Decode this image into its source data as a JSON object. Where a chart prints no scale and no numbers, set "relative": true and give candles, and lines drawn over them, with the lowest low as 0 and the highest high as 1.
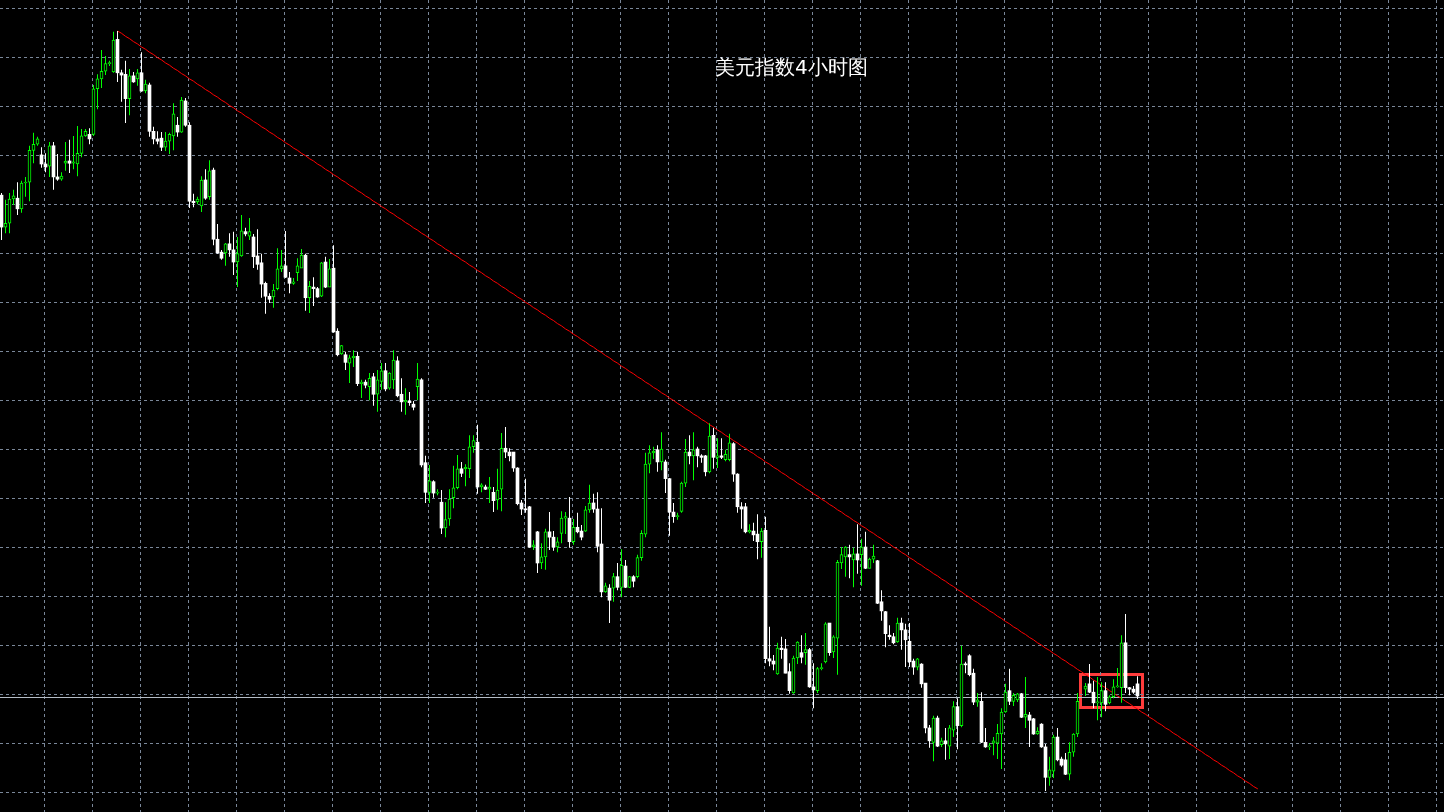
{
  "chart_data": {
    "type": "candlestick",
    "title": "美元指数4小时图",
    "relative": true,
    "grid": true,
    "categories": [
      null,
      null,
      null,
      null,
      null,
      null,
      null,
      null,
      null,
      null,
      null,
      null,
      null,
      null,
      null,
      null,
      null,
      null,
      null,
      null,
      null,
      null,
      null,
      null,
      null,
      null,
      null,
      null,
      null,
      null,
      null,
      null,
      null,
      null,
      null,
      null,
      null,
      null,
      null,
      null,
      null,
      null,
      null,
      null,
      null,
      null,
      null,
      null,
      null,
      null,
      null,
      null,
      null,
      null,
      null,
      null,
      null,
      null,
      null,
      null,
      null,
      null,
      null,
      null,
      null,
      null,
      null,
      null,
      null,
      null,
      null,
      null,
      null,
      null,
      null,
      null,
      null,
      null,
      null,
      null,
      null,
      null,
      null,
      null,
      null,
      null,
      null,
      null,
      null,
      null,
      null,
      null,
      null,
      null,
      null,
      null,
      null,
      null,
      null,
      null,
      null,
      null,
      null,
      null,
      null,
      null,
      null,
      null,
      null,
      null,
      null,
      null,
      null,
      null,
      null,
      null,
      null,
      null,
      null,
      null,
      null,
      null,
      null,
      null,
      null,
      null,
      null,
      null,
      null,
      null,
      null,
      null,
      null,
      null,
      null,
      null,
      null,
      null,
      null,
      null,
      null,
      null,
      null,
      null,
      null,
      null,
      null,
      null,
      null,
      null,
      null,
      null,
      null,
      null,
      null,
      null,
      null,
      null,
      null,
      null,
      null,
      null,
      null,
      null,
      null,
      null,
      null,
      null,
      null,
      null,
      null,
      null,
      null,
      null,
      null,
      null,
      null,
      null,
      null,
      null,
      null,
      null,
      null,
      null,
      null,
      null,
      null,
      null,
      null,
      null,
      null,
      null,
      null,
      null,
      null,
      null,
      null,
      null,
      null,
      null,
      null,
      null,
      null,
      null,
      null,
      null,
      null,
      null,
      null,
      null,
      null,
      null,
      null,
      null,
      null,
      null,
      null,
      null,
      null,
      null,
      null,
      null,
      null,
      null,
      null,
      null,
      null,
      null,
      null,
      null,
      null,
      null,
      null,
      null,
      null,
      null,
      null,
      null,
      null,
      null,
      null,
      null,
      null,
      null,
      null,
      null,
      null,
      null,
      null,
      null,
      null,
      null,
      null,
      null,
      null,
      null,
      null,
      null,
      null,
      null,
      null,
      null,
      null,
      null,
      null,
      null,
      null,
      null,
      null,
      null,
      null,
      null,
      null,
      null,
      null,
      null,
      null,
      null,
      null,
      null,
      null,
      null,
      null,
      null,
      null,
      null,
      null,
      null,
      null,
      null,
      null,
      null,
      null,
      null,
      null,
      null,
      null,
      null,
      null,
      null,
      null,
      null,
      null,
      null,
      null,
      null,
      null,
      null,
      null,
      null,
      null,
      null,
      null,
      null,
      null
    ],
    "ohlc": [
      [
        0.784,
        0.787,
        0.725,
        0.742
      ],
      [
        0.742,
        0.778,
        0.734,
        0.747
      ],
      [
        0.747,
        0.787,
        0.734,
        0.779
      ],
      [
        0.779,
        0.791,
        0.771,
        0.783
      ],
      [
        0.78,
        0.801,
        0.758,
        0.766
      ],
      [
        0.766,
        0.803,
        0.761,
        0.8
      ],
      [
        0.8,
        0.808,
        0.782,
        0.801
      ],
      [
        0.801,
        0.849,
        0.776,
        0.843
      ],
      [
        0.843,
        0.866,
        0.826,
        0.851
      ],
      [
        0.851,
        0.861,
        0.849,
        0.858
      ],
      [
        0.837,
        0.847,
        0.82,
        0.825
      ],
      [
        0.825,
        0.839,
        0.814,
        0.821
      ],
      [
        0.822,
        0.854,
        0.808,
        0.849
      ],
      [
        0.849,
        0.854,
        0.791,
        0.808
      ],
      [
        0.808,
        0.838,
        0.803,
        0.805
      ],
      [
        0.805,
        0.814,
        0.803,
        0.809
      ],
      [
        0.826,
        0.854,
        0.816,
        0.829
      ],
      [
        0.829,
        0.857,
        0.813,
        0.826
      ],
      [
        0.826,
        0.862,
        0.818,
        0.828
      ],
      [
        0.825,
        0.875,
        0.809,
        0.839
      ],
      [
        0.839,
        0.871,
        0.834,
        0.862
      ],
      [
        0.862,
        0.871,
        0.861,
        0.868
      ],
      [
        0.864,
        0.872,
        0.851,
        0.858
      ],
      [
        0.864,
        0.929,
        0.862,
        0.924
      ],
      [
        0.924,
        0.943,
        0.897,
        0.937
      ],
      [
        0.937,
        0.975,
        0.925,
        0.947
      ],
      [
        0.947,
        0.967,
        0.942,
        0.957
      ],
      [
        0.957,
        0.961,
        0.954,
        0.958
      ],
      [
        0.946,
        0.999,
        0.945,
        0.988
      ],
      [
        0.989,
        1,
        0.933,
        0.945
      ],
      [
        0.945,
        0.949,
        0.907,
        0.942
      ],
      [
        0.943,
        0.961,
        0.879,
        0.911
      ],
      [
        0.911,
        0.95,
        0.889,
        0.941
      ],
      [
        0.941,
        0.946,
        0.932,
        0.933
      ],
      [
        0.937,
        0.95,
        0.928,
        0.945
      ],
      [
        0.945,
        0.972,
        0.92,
        0.921
      ],
      [
        0.921,
        0.936,
        0.918,
        0.93
      ],
      [
        0.929,
        0.932,
        0.861,
        0.868
      ],
      [
        0.868,
        0.874,
        0.851,
        0.858
      ],
      [
        0.858,
        0.868,
        0.851,
        0.855
      ],
      [
        0.859,
        0.867,
        0.842,
        0.847
      ],
      [
        0.847,
        0.867,
        0.842,
        0.855
      ],
      [
        0.855,
        0.866,
        0.838,
        0.864
      ],
      [
        0.862,
        0.905,
        0.843,
        0.891
      ],
      [
        0.876,
        0.887,
        0.861,
        0.867
      ],
      [
        0.867,
        0.913,
        0.866,
        0.909
      ],
      [
        0.908,
        0.912,
        0.874,
        0.876
      ],
      [
        0.876,
        0.88,
        0.767,
        0.776
      ],
      [
        0.776,
        0.786,
        0.768,
        0.774
      ],
      [
        0.775,
        0.782,
        0.772,
        0.779
      ],
      [
        0.77,
        0.809,
        0.762,
        0.804
      ],
      [
        0.804,
        0.818,
        0.778,
        0.78
      ],
      [
        0.782,
        0.83,
        0.778,
        0.816
      ],
      [
        0.817,
        0.82,
        0.718,
        0.726
      ],
      [
        0.726,
        0.746,
        0.707,
        0.708
      ],
      [
        0.709,
        0.712,
        0.699,
        0.701
      ],
      [
        0.708,
        0.721,
        0.691,
        0.72
      ],
      [
        0.72,
        0.734,
        0.703,
        0.712
      ],
      [
        0.712,
        0.736,
        0.679,
        0.696
      ],
      [
        0.696,
        0.729,
        0.663,
        0.707
      ],
      [
        0.704,
        0.758,
        0.703,
        0.737
      ],
      [
        0.736,
        0.741,
        0.73,
        0.733
      ],
      [
        0.73,
        0.754,
        0.725,
        0.736
      ],
      [
        0.729,
        0.733,
        0.688,
        0.703
      ],
      [
        0.704,
        0.739,
        0.686,
        0.693
      ],
      [
        0.695,
        0.707,
        0.649,
        0.667
      ],
      [
        0.668,
        0.67,
        0.628,
        0.651
      ],
      [
        0.651,
        0.655,
        0.642,
        0.647
      ],
      [
        0.65,
        0.667,
        0.636,
        0.659
      ],
      [
        0.661,
        0.714,
        0.659,
        0.687
      ],
      [
        0.687,
        0.712,
        0.683,
        0.691
      ],
      [
        0.691,
        0.737,
        0.675,
        0.676
      ],
      [
        0.675,
        0.683,
        0.655,
        0.668
      ],
      [
        0.668,
        0.675,
        0.666,
        0.67
      ],
      [
        0.682,
        0.701,
        0.671,
        0.691
      ],
      [
        0.688,
        0.713,
        0.688,
        0.705
      ],
      [
        0.705,
        0.707,
        0.632,
        0.649
      ],
      [
        0.649,
        0.671,
        0.629,
        0.664
      ],
      [
        0.663,
        0.676,
        0.638,
        0.661
      ],
      [
        0.661,
        0.663,
        0.649,
        0.65
      ],
      [
        0.651,
        0.696,
        0.65,
        0.695
      ],
      [
        0.696,
        0.703,
        0.662,
        0.663
      ],
      [
        0.663,
        0.7,
        0.663,
        0.687
      ],
      [
        0.688,
        0.718,
        0.603,
        0.604
      ],
      [
        0.605,
        0.609,
        0.572,
        0.574
      ],
      [
        0.575,
        0.587,
        0.574,
        0.586
      ],
      [
        0.574,
        0.578,
        0.554,
        0.564
      ],
      [
        0.563,
        0.574,
        0.537,
        0.57
      ],
      [
        0.57,
        0.58,
        0.558,
        0.572
      ],
      [
        0.572,
        0.578,
        0.533,
        0.536
      ],
      [
        0.536,
        0.541,
        0.517,
        0.538
      ],
      [
        0.538,
        0.541,
        0.53,
        0.534
      ],
      [
        0.532,
        0.55,
        0.514,
        0.543
      ],
      [
        0.545,
        0.55,
        0.507,
        0.522
      ],
      [
        0.522,
        0.554,
        0.499,
        0.541
      ],
      [
        0.539,
        0.563,
        0.528,
        0.553
      ],
      [
        0.553,
        0.563,
        0.526,
        0.529
      ],
      [
        0.53,
        0.551,
        0.528,
        0.55
      ],
      [
        0.541,
        0.58,
        0.529,
        0.567
      ],
      [
        0.566,
        0.572,
        0.518,
        0.52
      ],
      [
        0.522,
        0.543,
        0.499,
        0.512
      ],
      [
        0.512,
        0.53,
        0.495,
        0.514
      ],
      [
        0.513,
        0.525,
        0.507,
        0.511
      ],
      [
        0.509,
        0.513,
        0.501,
        0.505
      ],
      [
        0.532,
        0.563,
        0.514,
        0.542
      ],
      [
        0.541,
        0.543,
        0.426,
        0.429
      ],
      [
        0.432,
        0.441,
        0.379,
        0.393
      ],
      [
        0.393,
        0.429,
        0.379,
        0.408
      ],
      [
        0.407,
        0.409,
        0.386,
        0.392
      ],
      [
        0.392,
        0.397,
        0.389,
        0.393
      ],
      [
        0.38,
        0.396,
        0.338,
        0.346
      ],
      [
        0.346,
        0.38,
        0.334,
        0.357
      ],
      [
        0.358,
        0.397,
        0.349,
        0.384
      ],
      [
        0.386,
        0.428,
        0.372,
        0.399
      ],
      [
        0.399,
        0.442,
        0.397,
        0.424
      ],
      [
        0.424,
        0.433,
        0.413,
        0.418
      ],
      [
        0.424,
        0.43,
        0.401,
        0.426
      ],
      [
        0.424,
        0.468,
        0.412,
        0.453
      ],
      [
        0.453,
        0.468,
        0.445,
        0.461
      ],
      [
        0.459,
        0.482,
        0.391,
        0.4
      ],
      [
        0.4,
        0.405,
        0.393,
        0.403
      ],
      [
        0.4,
        0.403,
        0.396,
        0.397
      ],
      [
        0.397,
        0.413,
        0.379,
        0.4
      ],
      [
        0.393,
        0.4,
        0.367,
        0.382
      ],
      [
        0.383,
        0.424,
        0.37,
        0.396
      ],
      [
        0.397,
        0.471,
        0.368,
        0.451
      ],
      [
        0.451,
        0.479,
        0.438,
        0.446
      ],
      [
        0.446,
        0.451,
        0.434,
        0.441
      ],
      [
        0.446,
        0.446,
        0.42,
        0.425
      ],
      [
        0.425,
        0.426,
        0.376,
        0.378
      ],
      [
        0.379,
        0.383,
        0.363,
        0.371
      ],
      [
        0.371,
        0.411,
        0.366,
        0.37
      ],
      [
        0.374,
        0.375,
        0.32,
        0.321
      ],
      [
        0.321,
        0.33,
        0.317,
        0.324
      ],
      [
        0.341,
        0.342,
        0.287,
        0.3
      ],
      [
        0.3,
        0.326,
        0.292,
        0.308
      ],
      [
        0.308,
        0.345,
        0.291,
        0.341
      ],
      [
        0.341,
        0.367,
        0.317,
        0.334
      ],
      [
        0.334,
        0.342,
        0.316,
        0.321
      ],
      [
        0.321,
        0.334,
        0.314,
        0.328
      ],
      [
        0.339,
        0.368,
        0.326,
        0.359
      ],
      [
        0.359,
        0.367,
        0.338,
        0.361
      ],
      [
        0.359,
        0.387,
        0.32,
        0.328
      ],
      [
        0.328,
        0.358,
        0.324,
        0.347
      ],
      [
        0.347,
        0.366,
        0.339,
        0.341
      ],
      [
        0.342,
        0.35,
        0.33,
        0.334
      ],
      [
        0.342,
        0.375,
        0.341,
        0.37
      ],
      [
        0.37,
        0.403,
        0.366,
        0.379
      ],
      [
        0.379,
        0.391,
        0.366,
        0.371
      ],
      [
        0.371,
        0.393,
        0.314,
        0.322
      ],
      [
        0.325,
        0.372,
        0.255,
        0.262
      ],
      [
        0.262,
        0.274,
        0.261,
        0.27
      ],
      [
        0.267,
        0.272,
        0.221,
        0.251
      ],
      [
        0.267,
        0.287,
        0.249,
        0.282
      ],
      [
        0.282,
        0.3,
        0.264,
        0.268
      ],
      [
        0.268,
        0.318,
        0.255,
        0.297
      ],
      [
        0.296,
        0.304,
        0.267,
        0.268
      ],
      [
        0.268,
        0.283,
        0.267,
        0.282
      ],
      [
        0.282,
        0.284,
        0.268,
        0.276
      ],
      [
        0.282,
        0.311,
        0.28,
        0.307
      ],
      [
        0.307,
        0.343,
        0.303,
        0.339
      ],
      [
        0.338,
        0.445,
        0.334,
        0.43
      ],
      [
        0.43,
        0.455,
        0.418,
        0.445
      ],
      [
        0.445,
        0.453,
        0.437,
        0.447
      ],
      [
        0.449,
        0.455,
        0.42,
        0.433
      ],
      [
        0.433,
        0.472,
        0.422,
        0.45
      ],
      [
        0.433,
        0.436,
        0.392,
        0.411
      ],
      [
        0.411,
        0.412,
        0.336,
        0.367
      ],
      [
        0.367,
        0.379,
        0.353,
        0.361
      ],
      [
        0.361,
        0.366,
        0.357,
        0.362
      ],
      [
        0.368,
        0.407,
        0.366,
        0.405
      ],
      [
        0.405,
        0.463,
        0.4,
        0.446
      ],
      [
        0.446,
        0.468,
        0.43,
        0.441
      ],
      [
        0.441,
        0.472,
        0.409,
        0.449
      ],
      [
        0.45,
        0.453,
        0.426,
        0.441
      ],
      [
        0.441,
        0.443,
        0.432,
        0.439
      ],
      [
        0.441,
        0.442,
        0.414,
        0.42
      ],
      [
        0.42,
        0.484,
        0.418,
        0.467
      ],
      [
        0.468,
        0.478,
        0.424,
        0.439
      ],
      [
        0.439,
        0.464,
        0.425,
        0.441
      ],
      [
        0.441,
        0.464,
        0.437,
        0.439
      ],
      [
        0.436,
        0.449,
        0.434,
        0.443
      ],
      [
        0.436,
        0.47,
        0.434,
        0.458
      ],
      [
        0.457,
        0.459,
        0.407,
        0.417
      ],
      [
        0.417,
        0.418,
        0.366,
        0.374
      ],
      [
        0.374,
        0.38,
        0.345,
        0.371
      ],
      [
        0.374,
        0.379,
        0.339,
        0.341
      ],
      [
        0.341,
        0.351,
        0.339,
        0.343
      ],
      [
        0.342,
        0.353,
        0.329,
        0.337
      ],
      [
        0.338,
        0.364,
        0.305,
        0.328
      ],
      [
        0.328,
        0.346,
        0.307,
        0.342
      ],
      [
        0.343,
        0.361,
        0.168,
        0.174
      ],
      [
        0.174,
        0.216,
        0.164,
        0.171
      ],
      [
        0.171,
        0.179,
        0.159,
        0.167
      ],
      [
        0.154,
        0.195,
        0.153,
        0.188
      ],
      [
        0.188,
        0.203,
        0.174,
        0.186
      ],
      [
        0.187,
        0.2,
        0.155,
        0.155
      ],
      [
        0.157,
        0.168,
        0.128,
        0.132
      ],
      [
        0.129,
        0.178,
        0.128,
        0.175
      ],
      [
        0.175,
        0.197,
        0.167,
        0.196
      ],
      [
        0.182,
        0.205,
        0.168,
        0.176
      ],
      [
        0.182,
        0.208,
        0.166,
        0.186
      ],
      [
        0.186,
        0.188,
        0.136,
        0.137
      ],
      [
        0.137,
        0.168,
        0.109,
        0.133
      ],
      [
        0.132,
        0.163,
        0.129,
        0.161
      ],
      [
        0.161,
        0.168,
        0.159,
        0.162
      ],
      [
        0.17,
        0.222,
        0.168,
        0.22
      ],
      [
        0.221,
        0.221,
        0.178,
        0.182
      ],
      [
        0.183,
        0.205,
        0.175,
        0.203
      ],
      [
        0.201,
        0.304,
        0.153,
        0.301
      ],
      [
        0.3,
        0.321,
        0.292,
        0.311
      ],
      [
        0.308,
        0.322,
        0.282,
        0.321
      ],
      [
        0.311,
        0.324,
        0.28,
        0.308
      ],
      [
        0.304,
        0.32,
        0.268,
        0.312
      ],
      [
        0.312,
        0.351,
        0.286,
        0.304
      ],
      [
        0.311,
        0.332,
        0.27,
        0.321
      ],
      [
        0.321,
        0.341,
        0.292,
        0.293
      ],
      [
        0.293,
        0.307,
        0.293,
        0.305
      ],
      [
        0.305,
        0.324,
        0.3,
        0.309
      ],
      [
        0.303,
        0.304,
        0.246,
        0.247
      ],
      [
        0.249,
        0.264,
        0.224,
        0.237
      ],
      [
        0.236,
        0.237,
        0.189,
        0.207
      ],
      [
        0.205,
        0.218,
        0.199,
        0.203
      ],
      [
        0.203,
        0.208,
        0.193,
        0.195
      ],
      [
        0.196,
        0.228,
        0.195,
        0.221
      ],
      [
        0.221,
        0.228,
        0.186,
        0.212
      ],
      [
        0.212,
        0.22,
        0.163,
        0.199
      ],
      [
        0.197,
        0.221,
        0.163,
        0.17
      ],
      [
        0.171,
        0.174,
        0.153,
        0.163
      ],
      [
        0.163,
        0.175,
        0.159,
        0.174
      ],
      [
        0.167,
        0.168,
        0.136,
        0.141
      ],
      [
        0.142,
        0.142,
        0.076,
        0.083
      ],
      [
        0.083,
        0.087,
        0.057,
        0.066
      ],
      [
        0.064,
        0.099,
        0.039,
        0.096
      ],
      [
        0.096,
        0.099,
        0.058,
        0.059
      ],
      [
        0.061,
        0.07,
        0.058,
        0.066
      ],
      [
        0.066,
        0.083,
        0.041,
        0.062
      ],
      [
        0.059,
        0.087,
        0.042,
        0.083
      ],
      [
        0.08,
        0.118,
        0.071,
        0.111
      ],
      [
        0.111,
        0.122,
        0.055,
        0.086
      ],
      [
        0.086,
        0.191,
        0.084,
        0.167
      ],
      [
        0.167,
        0.17,
        0.155,
        0.166
      ],
      [
        0.178,
        0.18,
        0.151,
        0.153
      ],
      [
        0.155,
        0.161,
        0.113,
        0.117
      ],
      [
        0.117,
        0.129,
        0.111,
        0.12
      ],
      [
        0.118,
        0.13,
        0.063,
        0.064
      ],
      [
        0.064,
        0.083,
        0.057,
        0.058
      ],
      [
        0.058,
        0.063,
        0.054,
        0.059
      ],
      [
        0.063,
        0.071,
        0.047,
        0.066
      ],
      [
        0.063,
        0.088,
        0.042,
        0.076
      ],
      [
        0.075,
        0.109,
        0.029,
        0.104
      ],
      [
        0.104,
        0.141,
        0.103,
        0.13
      ],
      [
        0.132,
        0.161,
        0.113,
        0.118
      ],
      [
        0.118,
        0.129,
        0.112,
        0.126
      ],
      [
        0.12,
        0.129,
        0.117,
        0.128
      ],
      [
        0.128,
        0.129,
        0.096,
        0.097
      ],
      [
        0.097,
        0.15,
        0.083,
        0.101
      ],
      [
        0.1,
        0.104,
        0.058,
        0.093
      ],
      [
        0.095,
        0.096,
        0.074,
        0.075
      ],
      [
        0.075,
        0.084,
        0.074,
        0.079
      ],
      [
        0.088,
        0.089,
        0.057,
        0.058
      ],
      [
        0.058,
        0.062,
        0,
        0.018
      ],
      [
        0.018,
        0.045,
        0.007,
        0.028
      ],
      [
        0.026,
        0.074,
        0.017,
        0.071
      ],
      [
        0.071,
        0.083,
        0.039,
        0.041
      ],
      [
        0.042,
        0.045,
        0.032,
        0.034
      ],
      [
        0.041,
        0.05,
        0.021,
        0.022
      ],
      [
        0.022,
        0.064,
        0.014,
        0.051
      ],
      [
        0.051,
        0.076,
        0.045,
        0.075
      ],
      [
        0.075,
        0.129,
        0.071,
        0.118
      ],
      null,
      [
        0.134,
        0.142,
        0.125,
        0.138
      ],
      [
        0.141,
        0.167,
        0.129,
        0.13
      ],
      [
        0.13,
        0.145,
        0.109,
        0.116
      ],
      [
        0.116,
        0.15,
        0.093,
        0.117
      ],
      [
        0.116,
        0.143,
        0.097,
        0.132
      ],
      [
        0.132,
        0.143,
        0.105,
        0.114
      ],
      [
        0.116,
        0.126,
        0.114,
        0.124
      ],
      [
        0.124,
        0.147,
        0.122,
        0.137
      ],
      [
        0.137,
        0.162,
        0.136,
        0.138
      ],
      [
        0.136,
        0.205,
        0.116,
        0.195
      ],
      [
        0.195,
        0.233,
        0.129,
        0.136
      ],
      [
        0.136,
        0.137,
        0.126,
        0.134
      ],
      [
        0.134,
        0.138,
        0.128,
        0.13
      ],
      [
        0.141,
        0.151,
        0.121,
        0.125
      ],
      null,
      null,
      null,
      null,
      null,
      null,
      null,
      null,
      null,
      null,
      null,
      null,
      null,
      null,
      null,
      null,
      null,
      null,
      null,
      null,
      null,
      null,
      null,
      null,
      null,
      null,
      null,
      null,
      null,
      null
    ],
    "colors": [
      "#ffffff",
      "#00ff00",
      "#00ff00",
      "#00ff00",
      "#ffffff",
      "#00ff00",
      "#00ff00",
      "#00ff00",
      "#00ff00",
      "#00ff00",
      "#ffffff",
      "#ffffff",
      "#00ff00",
      "#ffffff",
      "#ffffff",
      "#00ff00",
      "#00ff00",
      "#ffffff",
      "#00ff00",
      "#00ff00",
      "#00ff00",
      "#00ff00",
      "#ffffff",
      "#00ff00",
      "#00ff00",
      "#00ff00",
      "#00ff00",
      "#00ff00",
      "#00ff00",
      "#ffffff",
      "#ffffff",
      "#ffffff",
      "#00ff00",
      "#ffffff",
      "#00ff00",
      "#ffffff",
      "#00ff00",
      "#ffffff",
      "#ffffff",
      "#ffffff",
      "#ffffff",
      "#00ff00",
      "#00ff00",
      "#00ff00",
      "#ffffff",
      "#00ff00",
      "#ffffff",
      "#ffffff",
      "#ffffff",
      "#00ff00",
      "#00ff00",
      "#ffffff",
      "#00ff00",
      "#ffffff",
      "#ffffff",
      "#ffffff",
      "#00ff00",
      "#ffffff",
      "#ffffff",
      "#00ff00",
      "#00ff00",
      "#ffffff",
      "#00ff00",
      "#ffffff",
      "#ffffff",
      "#ffffff",
      "#ffffff",
      "#ffffff",
      "#00ff00",
      "#00ff00",
      "#00ff00",
      "#ffffff",
      "#ffffff",
      "#00ff00",
      "#00ff00",
      "#00ff00",
      "#ffffff",
      "#00ff00",
      "#ffffff",
      "#ffffff",
      "#00ff00",
      "#ffffff",
      "#00ff00",
      "#ffffff",
      "#ffffff",
      "#00ff00",
      "#ffffff",
      "#00ff00",
      "#00ff00",
      "#ffffff",
      "#00ff00",
      "#ffffff",
      "#00ff00",
      "#ffffff",
      "#00ff00",
      "#00ff00",
      "#ffffff",
      "#00ff00",
      "#00ff00",
      "#ffffff",
      "#ffffff",
      "#00ff00",
      "#ffffff",
      "#ffffff",
      "#00ff00",
      "#ffffff",
      "#ffffff",
      "#00ff00",
      "#ffffff",
      "#00ff00",
      "#ffffff",
      "#00ff00",
      "#00ff00",
      "#00ff00",
      "#00ff00",
      "#ffffff",
      "#00ff00",
      "#00ff00",
      "#00ff00",
      "#ffffff",
      "#00ff00",
      "#ffffff",
      "#00ff00",
      "#ffffff",
      "#00ff00",
      "#00ff00",
      "#ffffff",
      "#ffffff",
      "#ffffff",
      "#ffffff",
      "#ffffff",
      "#ffffff",
      "#ffffff",
      "#00ff00",
      "#ffffff",
      "#00ff00",
      "#00ff00",
      "#ffffff",
      "#ffffff",
      "#00ff00",
      "#00ff00",
      "#00ff00",
      "#ffffff",
      "#00ff00",
      "#ffffff",
      "#ffffff",
      "#00ff00",
      "#00ff00",
      "#ffffff",
      "#ffffff",
      "#ffffff",
      "#00ff00",
      "#ffffff",
      "#00ff00",
      "#ffffff",
      "#00ff00",
      "#ffffff",
      "#00ff00",
      "#ffffff",
      "#00ff00",
      "#00ff00",
      "#00ff00",
      "#00ff00",
      "#00ff00",
      "#ffffff",
      "#00ff00",
      "#ffffff",
      "#ffffff",
      "#ffffff",
      "#00ff00",
      "#00ff00",
      "#00ff00",
      "#ffffff",
      "#00ff00",
      "#ffffff",
      "#ffffff",
      "#ffffff",
      "#00ff00",
      "#ffffff",
      "#00ff00",
      "#ffffff",
      "#00ff00",
      "#00ff00",
      "#ffffff",
      "#ffffff",
      "#ffffff",
      "#ffffff",
      "#00ff00",
      "#ffffff",
      "#ffffff",
      "#00ff00",
      "#ffffff",
      "#ffffff",
      "#ffffff",
      "#00ff00",
      "#ffffff",
      "#ffffff",
      "#ffffff",
      "#00ff00",
      "#00ff00",
      "#ffffff",
      "#00ff00",
      "#ffffff",
      "#ffffff",
      "#00ff00",
      "#00ff00",
      "#00ff00",
      "#ffffff",
      "#00ff00",
      "#00ff00",
      "#00ff00",
      "#00ff00",
      "#ffffff",
      "#00ff00",
      "#ffffff",
      "#00ff00",
      "#ffffff",
      "#00ff00",
      "#00ff00",
      "#ffffff",
      "#ffffff",
      "#ffffff",
      "#ffffff",
      "#ffffff",
      "#00ff00",
      "#ffffff",
      "#ffffff",
      "#ffffff",
      "#ffffff",
      "#00ff00",
      "#ffffff",
      "#ffffff",
      "#ffffff",
      "#00ff00",
      "#ffffff",
      "#00ff00",
      "#ffffff",
      "#00ff00",
      "#00ff00",
      "#ffffff",
      "#00ff00",
      "#ffffff",
      "#ffffff",
      "#ffffff",
      "#00ff00",
      "#ffffff",
      "#ffffff",
      "#00ff00",
      "#00ff00",
      "#00ff00",
      "#00ff00",
      "#00ff00",
      "#ffffff",
      "#00ff00",
      "#00ff00",
      "#ffffff",
      "#00ff00",
      "#ffffff",
      "#ffffff",
      "#00ff00",
      "#ffffff",
      "#ffffff",
      "#00ff00",
      "#00ff00",
      "#ffffff",
      "#ffffff",
      "#ffffff",
      "#00ff00",
      "#00ff00",
      "#00ff00",
      null,
      "#00ff00",
      "#ffffff",
      "#ffffff",
      "#00ff00",
      "#00ff00",
      "#ffffff",
      "#00ff00",
      "#00ff00",
      "#00ff00",
      "#00ff00",
      "#ffffff",
      "#ffffff",
      "#ffffff",
      "#ffffff",
      null,
      null,
      null,
      null,
      null,
      null,
      null,
      null,
      null,
      null,
      null,
      null,
      null,
      null,
      null,
      null,
      null,
      null,
      null,
      null,
      null,
      null,
      null,
      null,
      null,
      null,
      null,
      null,
      null,
      null
    ],
    "series": [
      {
        "type": "line",
        "color": "#ff0000",
        "values": [
          null,
          null,
          null,
          null,
          null,
          null,
          null,
          null,
          null,
          null,
          null,
          null,
          null,
          null,
          null,
          null,
          null,
          null,
          null,
          null,
          null,
          null,
          null,
          null,
          null,
          null,
          null,
          null,
          null,
          1,
          0.997,
          0.993,
          0.99,
          0.986,
          0.983,
          0.979,
          0.976,
          0.972,
          0.969,
          0.965,
          0.962,
          0.958,
          0.955,
          0.951,
          0.948,
          0.944,
          0.941,
          0.937,
          0.934,
          0.93,
          0.927,
          0.923,
          0.92,
          0.916,
          0.913,
          0.909,
          0.906,
          0.902,
          0.899,
          0.895,
          0.892,
          0.888,
          0.885,
          0.881,
          0.878,
          0.874,
          0.871,
          0.867,
          0.864,
          0.86,
          0.857,
          0.853,
          0.85,
          0.846,
          0.843,
          0.839,
          0.836,
          0.832,
          0.829,
          0.825,
          0.822,
          0.818,
          0.815,
          0.811,
          0.808,
          0.804,
          0.801,
          0.797,
          0.794,
          0.79,
          0.787,
          0.783,
          0.78,
          0.776,
          0.773,
          0.769,
          0.766,
          0.762,
          0.759,
          0.755,
          0.752,
          0.748,
          0.745,
          0.741,
          0.738,
          0.734,
          0.731,
          0.727,
          0.724,
          0.72,
          0.717,
          0.713,
          0.71,
          0.706,
          0.703,
          0.699,
          0.696,
          0.692,
          0.689,
          0.685,
          0.682,
          0.678,
          0.675,
          0.671,
          0.668,
          0.664,
          0.661,
          0.657,
          0.654,
          0.65,
          0.647,
          0.643,
          0.64,
          0.636,
          0.633,
          0.629,
          0.626,
          0.622,
          0.619,
          0.615,
          0.612,
          0.608,
          0.605,
          0.601,
          0.598,
          0.594,
          0.591,
          0.587,
          0.584,
          0.58,
          0.577,
          0.573,
          0.57,
          0.566,
          0.563,
          0.559,
          0.556,
          0.552,
          0.549,
          0.545,
          0.542,
          0.538,
          0.535,
          0.531,
          0.528,
          0.524,
          0.521,
          0.517,
          0.514,
          0.51,
          0.507,
          0.503,
          0.5,
          0.496,
          0.493,
          0.489,
          0.486,
          0.482,
          0.479,
          0.475,
          0.472,
          0.468,
          0.465,
          0.461,
          0.458,
          0.454,
          0.451,
          0.447,
          0.444,
          0.44,
          0.437,
          0.433,
          0.43,
          0.426,
          0.423,
          0.419,
          0.416,
          0.412,
          0.409,
          0.405,
          0.402,
          0.398,
          0.395,
          0.391,
          0.388,
          0.384,
          0.381,
          0.377,
          0.374,
          0.37,
          0.367,
          0.363,
          0.36,
          0.356,
          0.353,
          0.349,
          0.346,
          0.342,
          0.339,
          0.335,
          0.332,
          0.328,
          0.325,
          0.321,
          0.318,
          0.314,
          0.311,
          0.307,
          0.304,
          0.3,
          0.297,
          0.293,
          0.29,
          0.286,
          0.283,
          0.279,
          0.276,
          0.272,
          0.269,
          0.265,
          0.262,
          0.258,
          0.255,
          0.251,
          0.248,
          0.244,
          0.241,
          0.237,
          0.234,
          0.23,
          0.227,
          0.223,
          0.22,
          0.216,
          0.213,
          0.209,
          0.206,
          0.202,
          0.199,
          0.195,
          0.192,
          0.188,
          0.185,
          0.181,
          0.178,
          0.174,
          0.171,
          0.167,
          0.164,
          0.16,
          0.157,
          0.153,
          0.15,
          0.146,
          0.143,
          0.139,
          0.136,
          0.132,
          0.129,
          0.125,
          0.122,
          0.118,
          0.115,
          0.111,
          0.108,
          0.104,
          0.101,
          0.097,
          0.094,
          0.09,
          0.087,
          0.083,
          0.08,
          0.076,
          0.073,
          0.069,
          0.066,
          0.062,
          0.059,
          0.055,
          0.052,
          0.048,
          0.045,
          0.041,
          0.038,
          0.034,
          0.031,
          0.027,
          0.024,
          0.02,
          0.017,
          0.013,
          0.01,
          0.006,
          0.003
        ]
      }
    ],
    "ref_lines": [
      {
        "axis": "y",
        "value": 0.124,
        "color": "#b4bcc6"
      }
    ]
  }
}
